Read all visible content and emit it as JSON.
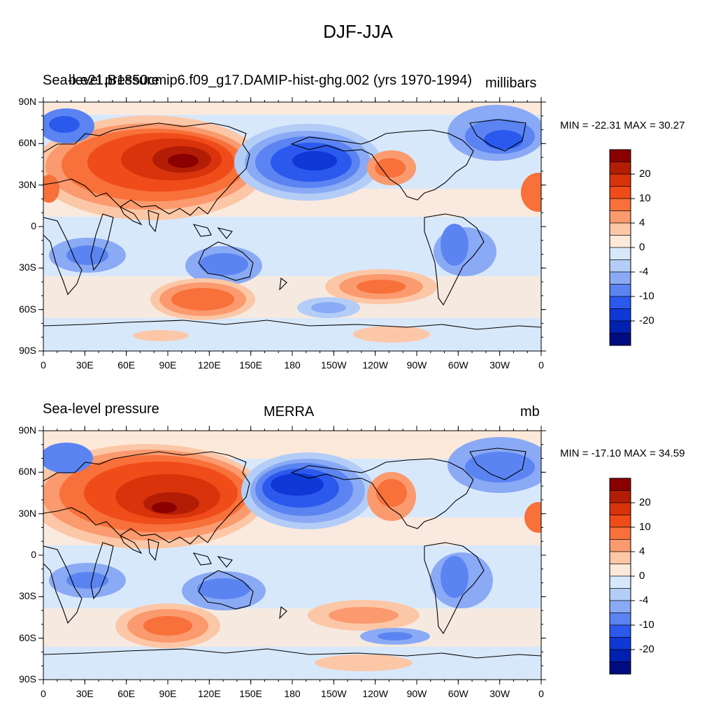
{
  "main_title": "DJF-JJA",
  "colors": {
    "scale": [
      "#8b0000",
      "#b31d05",
      "#d8330b",
      "#f04c1a",
      "#f8703a",
      "#fa9a6e",
      "#fcc7a7",
      "#fde9da",
      "#d8e8fb",
      "#b3cdf7",
      "#8aaaf5",
      "#5b84f2",
      "#2b59ee",
      "#0f38d6",
      "#0020b0",
      "#000c80"
    ],
    "coast": "#000000"
  },
  "panels": [
    {
      "left_title": "Sea-level pressure",
      "center_title": "b.e21.B1850cmip6.f09_g17.DAMIP-hist-ghg.002 (yrs 1970-1994)",
      "right_title": "millibars",
      "minmax": "MIN = -22.31 MAX =  30.27"
    },
    {
      "left_title": "Sea-level pressure",
      "center_title": "MERRA",
      "right_title": "mb",
      "minmax": "MIN = -17.10 MAX =  34.59"
    }
  ],
  "lat_labels": [
    "90N",
    "60N",
    "30N",
    "0",
    "30S",
    "60S",
    "90S"
  ],
  "lon_labels": [
    "0",
    "30E",
    "60E",
    "90E",
    "120E",
    "150E",
    "180",
    "150W",
    "120W",
    "90W",
    "60W",
    "30W",
    "0"
  ],
  "colorbar_labels": [
    "20",
    "10",
    "4",
    "0",
    "-4",
    "-10",
    "-20"
  ]
}
